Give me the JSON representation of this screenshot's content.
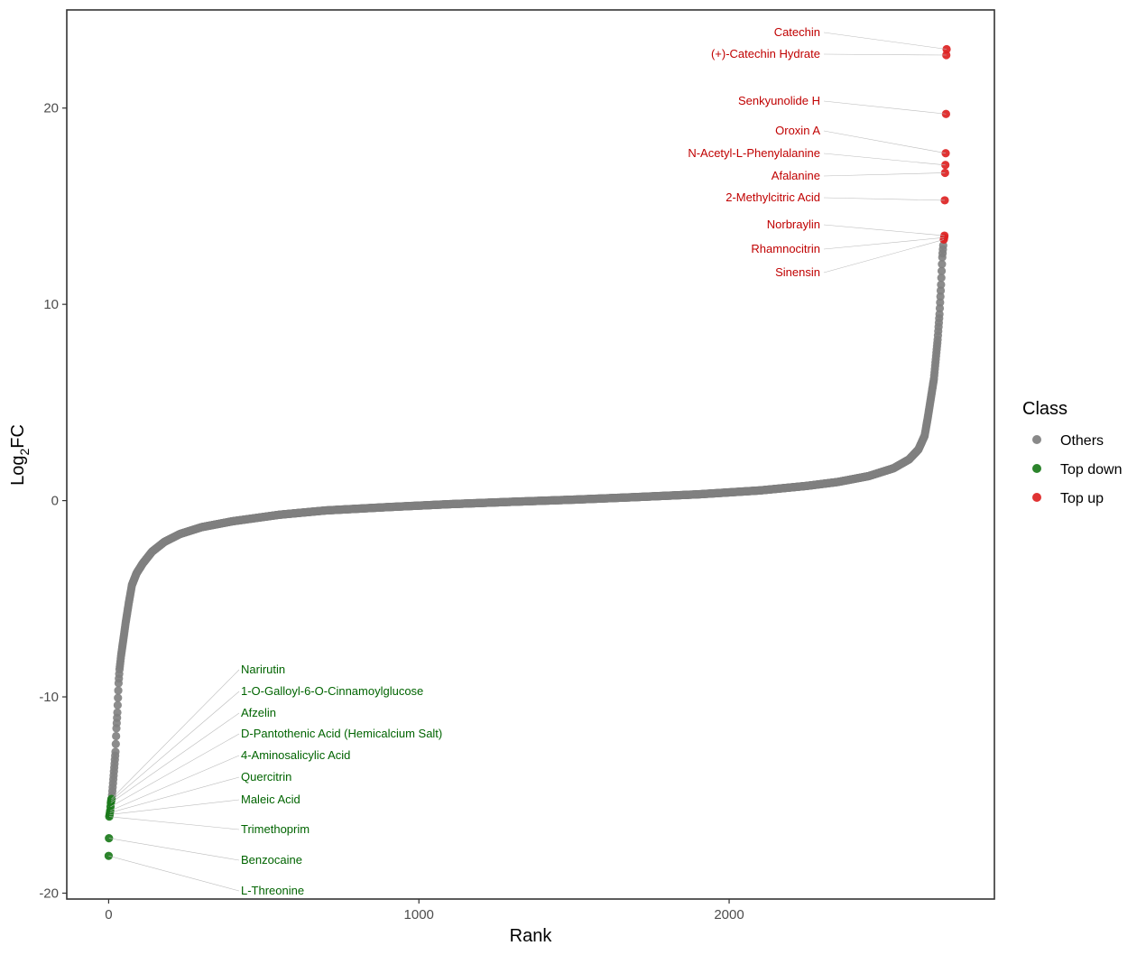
{
  "chart_data": {
    "type": "scatter",
    "xlabel": "Rank",
    "ylabel": {
      "base": "Log",
      "sub": "2",
      "rest": "FC"
    },
    "xlim": [
      -135,
      2855
    ],
    "ylim": [
      -20.3,
      25
    ],
    "x_ticks": [
      0,
      1000,
      2000
    ],
    "x_tick_labels": [
      "0",
      "1000",
      "2000"
    ],
    "y_ticks": [
      -20,
      -10,
      0,
      10,
      20
    ],
    "y_tick_labels": [
      "-20",
      "-10",
      "0",
      "10",
      "20"
    ],
    "grid": false,
    "legend": {
      "title": "Class",
      "position": "right",
      "items": [
        {
          "label": "Others",
          "color": "#7f7f7f"
        },
        {
          "label": "Top down",
          "color": "#1a7a1a"
        },
        {
          "label": "Top up",
          "color": "#dd2222"
        }
      ]
    },
    "n_points": 2702,
    "others_curve": [
      [
        10,
        -15.2
      ],
      [
        12,
        -14.8
      ],
      [
        15,
        -14.2
      ],
      [
        18,
        -13.6
      ],
      [
        22,
        -12.8
      ],
      [
        25,
        -11.6
      ],
      [
        28,
        -10.8
      ],
      [
        32,
        -9.3
      ],
      [
        35,
        -8.6
      ],
      [
        40,
        -7.9
      ],
      [
        48,
        -7.0
      ],
      [
        55,
        -6.2
      ],
      [
        65,
        -5.2
      ],
      [
        75,
        -4.3
      ],
      [
        90,
        -3.7
      ],
      [
        110,
        -3.2
      ],
      [
        140,
        -2.6
      ],
      [
        180,
        -2.1
      ],
      [
        230,
        -1.7
      ],
      [
        300,
        -1.35
      ],
      [
        400,
        -1.05
      ],
      [
        550,
        -0.72
      ],
      [
        700,
        -0.5
      ],
      [
        900,
        -0.33
      ],
      [
        1100,
        -0.18
      ],
      [
        1300,
        -0.06
      ],
      [
        1500,
        0.05
      ],
      [
        1700,
        0.18
      ],
      [
        1900,
        0.32
      ],
      [
        2100,
        0.52
      ],
      [
        2250,
        0.75
      ],
      [
        2350,
        0.95
      ],
      [
        2450,
        1.25
      ],
      [
        2530,
        1.65
      ],
      [
        2580,
        2.1
      ],
      [
        2610,
        2.6
      ],
      [
        2630,
        3.3
      ],
      [
        2640,
        4.2
      ],
      [
        2650,
        5.2
      ],
      [
        2660,
        6.2
      ],
      [
        2666,
        7.2
      ],
      [
        2672,
        8.2
      ],
      [
        2678,
        9.5
      ],
      [
        2683,
        11.0
      ],
      [
        2687,
        12.4
      ],
      [
        2690,
        13.0
      ]
    ],
    "top_up": [
      {
        "label": "Catechin",
        "x": 2701,
        "y": 23.0
      },
      {
        "label": "(+)-Catechin Hydrate",
        "x": 2700,
        "y": 22.7
      },
      {
        "label": "Senkyunolide H",
        "x": 2699,
        "y": 19.7
      },
      {
        "label": "Oroxin A",
        "x": 2698,
        "y": 17.7
      },
      {
        "label": "N-Acetyl-L-Phenylalanine",
        "x": 2697,
        "y": 17.1
      },
      {
        "label": "Afalanine",
        "x": 2696,
        "y": 16.7
      },
      {
        "label": "2-Methylcitric Acid",
        "x": 2695,
        "y": 15.3
      },
      {
        "label": "Norbraylin",
        "x": 2694,
        "y": 13.5
      },
      {
        "label": "Rhamnocitrin",
        "x": 2693,
        "y": 13.4
      },
      {
        "label": "Sinensin",
        "x": 2692,
        "y": 13.3
      }
    ],
    "top_down": [
      {
        "label": "Narirutin",
        "x": 9,
        "y": -15.2
      },
      {
        "label": "1-O-Galloyl-6-O-Cinnamoylglucose",
        "x": 8,
        "y": -15.3
      },
      {
        "label": "Afzelin",
        "x": 7,
        "y": -15.4
      },
      {
        "label": "D-Pantothenic Acid (Hemicalcium Salt)",
        "x": 6,
        "y": -15.6
      },
      {
        "label": "4-Aminosalicylic Acid",
        "x": 5,
        "y": -15.8
      },
      {
        "label": "Quercitrin",
        "x": 4,
        "y": -15.9
      },
      {
        "label": "Maleic Acid",
        "x": 3,
        "y": -16.0
      },
      {
        "label": "Trimethoprim",
        "x": 2,
        "y": -16.1
      },
      {
        "label": "Benzocaine",
        "x": 1,
        "y": -17.2
      },
      {
        "label": "L-Threonine",
        "x": 0,
        "y": -18.1
      }
    ]
  }
}
